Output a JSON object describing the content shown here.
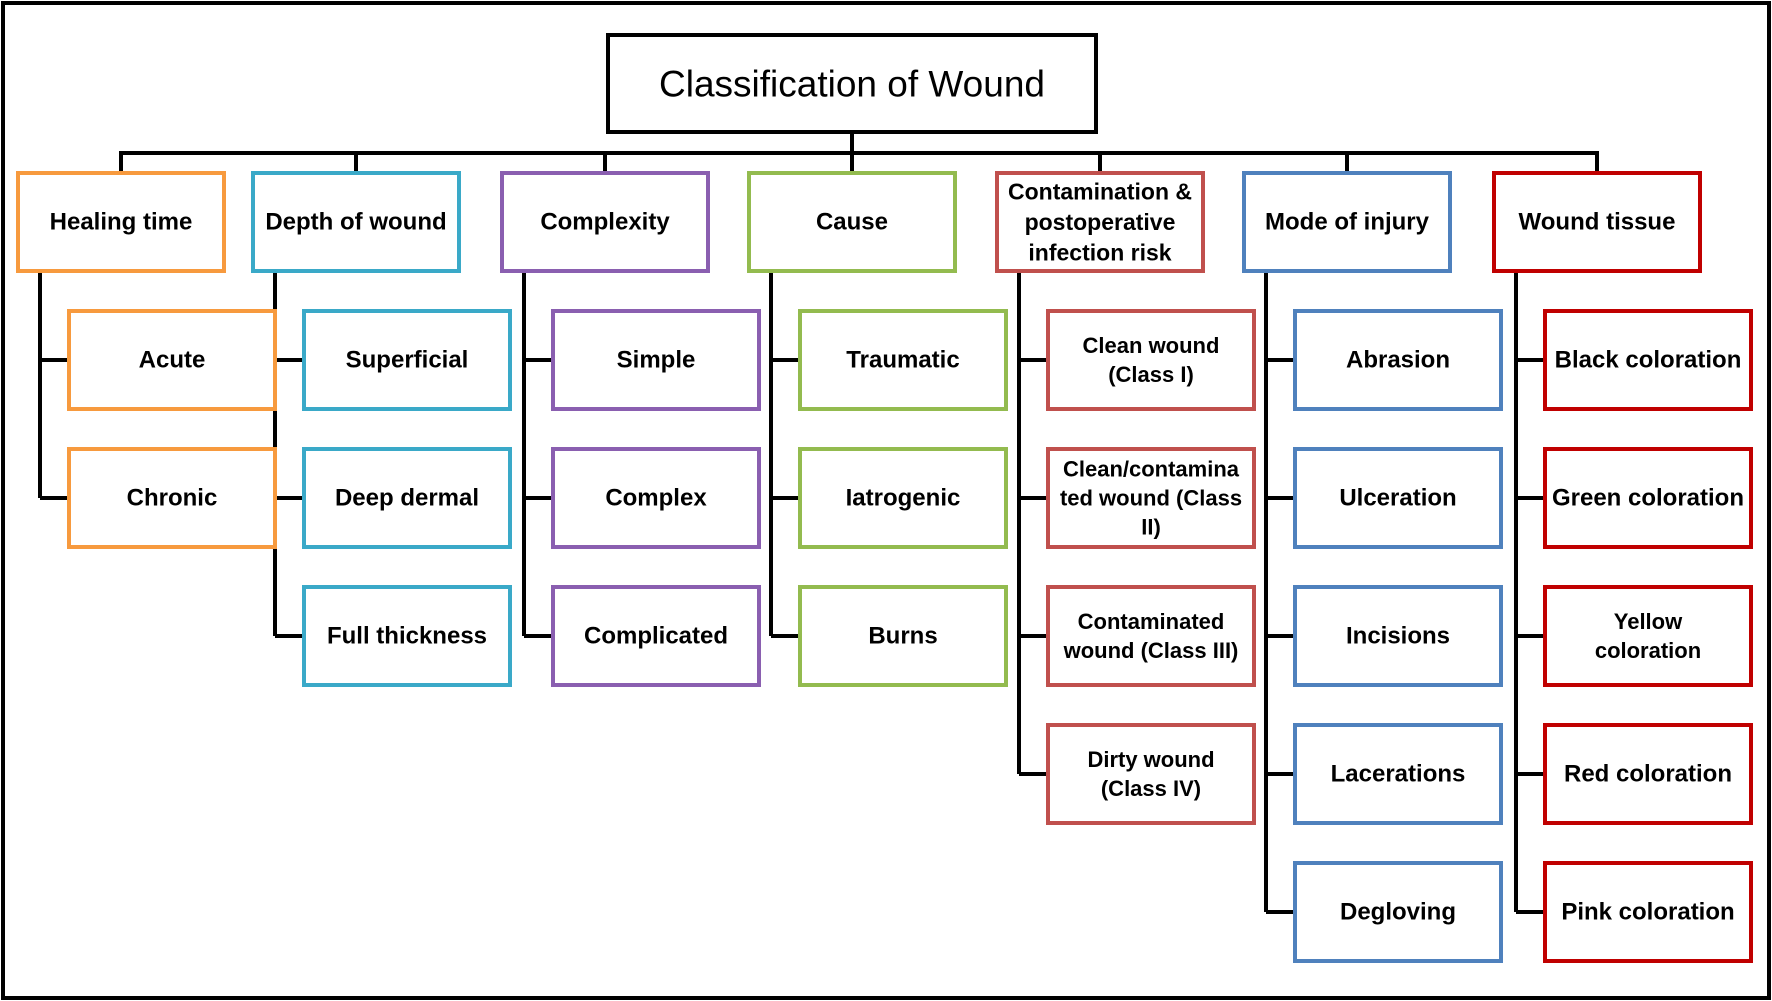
{
  "title": "Classification of Wound",
  "colors": {
    "line": "#000000",
    "title_border": "#000000",
    "orange": "#f79a3e",
    "cyan": "#3aa9c8",
    "purple": "#8a5fb0",
    "green": "#93bb4f",
    "red_muted": "#c0504d",
    "blue": "#4f81bd",
    "red": "#c00000"
  },
  "categories": [
    {
      "id": "healing-time",
      "label": [
        "Healing time"
      ],
      "color": "orange",
      "items": [
        [
          "Acute"
        ],
        [
          "Chronic"
        ]
      ]
    },
    {
      "id": "depth-of-wound",
      "label": [
        "Depth of wound"
      ],
      "color": "cyan",
      "items": [
        [
          "Superficial"
        ],
        [
          "Deep dermal"
        ],
        [
          "Full thickness"
        ]
      ]
    },
    {
      "id": "complexity",
      "label": [
        "Complexity"
      ],
      "color": "purple",
      "items": [
        [
          "Simple"
        ],
        [
          "Complex"
        ],
        [
          "Complicated"
        ]
      ]
    },
    {
      "id": "cause",
      "label": [
        "Cause"
      ],
      "color": "green",
      "items": [
        [
          "Traumatic"
        ],
        [
          "Iatrogenic"
        ],
        [
          "Burns"
        ]
      ]
    },
    {
      "id": "contamination",
      "label": [
        "Contamination &",
        "postoperative",
        "infection risk"
      ],
      "color": "red_muted",
      "items": [
        [
          "Clean wound",
          "(Class I)"
        ],
        [
          "Clean/contamina",
          "ted wound (Class",
          "II)"
        ],
        [
          "Contaminated",
          "wound (Class III)"
        ],
        [
          "Dirty wound",
          "(Class IV)"
        ]
      ]
    },
    {
      "id": "mode-of-injury",
      "label": [
        "Mode of injury"
      ],
      "color": "blue",
      "items": [
        [
          "Abrasion"
        ],
        [
          "Ulceration"
        ],
        [
          "Incisions"
        ],
        [
          "Lacerations"
        ],
        [
          "Degloving"
        ]
      ]
    },
    {
      "id": "wound-tissue",
      "label": [
        "Wound tissue"
      ],
      "color": "red",
      "items": [
        [
          "Black coloration"
        ],
        [
          "Green coloration"
        ],
        [
          "Yellow",
          "coloration"
        ],
        [
          "Red coloration"
        ],
        [
          "Pink coloration"
        ]
      ]
    }
  ]
}
